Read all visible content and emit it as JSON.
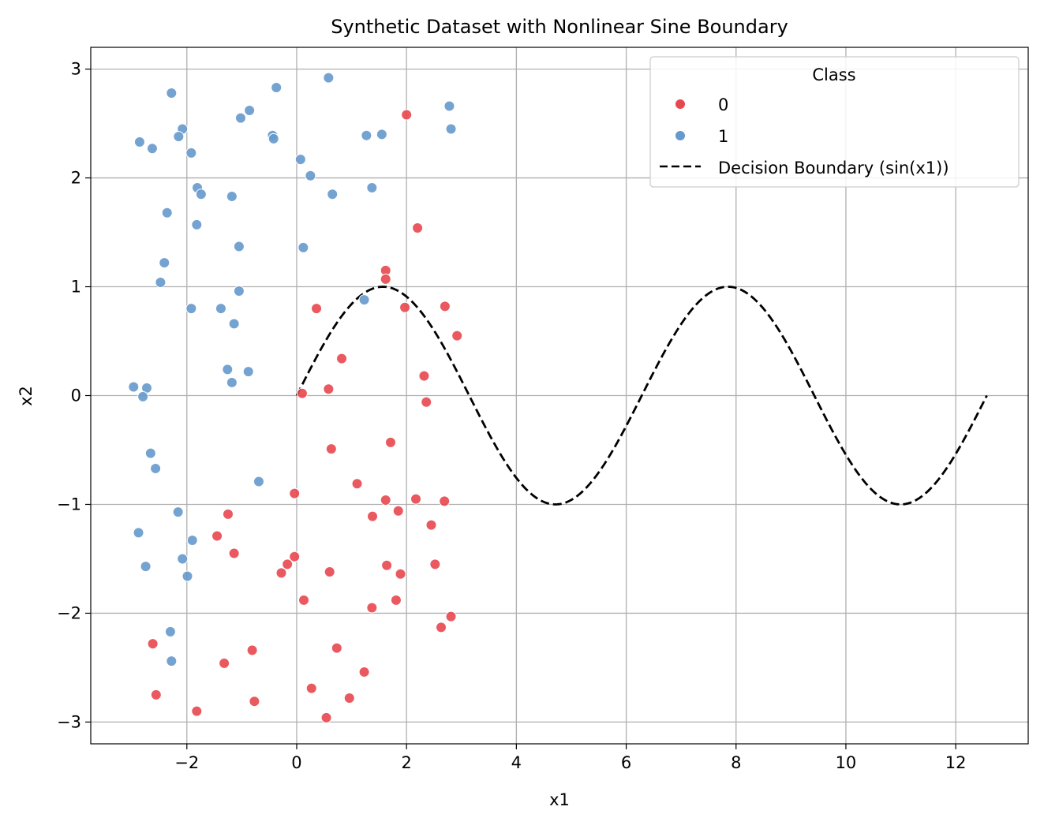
{
  "chart_data": {
    "type": "scatter",
    "title": "Synthetic Dataset with Nonlinear Sine Boundary",
    "xlabel": "x1",
    "ylabel": "x2",
    "xlim": [
      -3.75,
      13.32
    ],
    "ylim": [
      -3.2,
      3.2
    ],
    "xticks": [
      -2,
      0,
      2,
      4,
      6,
      8,
      10,
      12
    ],
    "yticks": [
      -3,
      -2,
      -1,
      0,
      1,
      2,
      3
    ],
    "xtick_labels": [
      "−2",
      "0",
      "2",
      "4",
      "6",
      "8",
      "10",
      "12"
    ],
    "ytick_labels": [
      "−3",
      "−2",
      "−1",
      "0",
      "1",
      "2",
      "3"
    ],
    "grid": true,
    "legend": {
      "title": "Class",
      "placement": "top-right",
      "entries": [
        "0",
        "1",
        "Decision Boundary (sin(x1))"
      ]
    },
    "series": [
      {
        "name": "0",
        "color": "#e8474e",
        "points": [
          [
            2.0,
            2.58
          ],
          [
            2.2,
            1.54
          ],
          [
            1.62,
            1.15
          ],
          [
            1.62,
            1.07
          ],
          [
            0.36,
            0.8
          ],
          [
            1.97,
            0.81
          ],
          [
            2.7,
            0.82
          ],
          [
            2.92,
            0.55
          ],
          [
            0.82,
            0.34
          ],
          [
            2.32,
            0.18
          ],
          [
            0.1,
            0.02
          ],
          [
            0.58,
            0.06
          ],
          [
            2.36,
            -0.06
          ],
          [
            1.71,
            -0.43
          ],
          [
            0.63,
            -0.49
          ],
          [
            1.1,
            -0.81
          ],
          [
            -0.04,
            -0.9
          ],
          [
            1.62,
            -0.96
          ],
          [
            2.17,
            -0.95
          ],
          [
            2.69,
            -0.97
          ],
          [
            1.38,
            -1.11
          ],
          [
            1.85,
            -1.06
          ],
          [
            -1.25,
            -1.09
          ],
          [
            2.45,
            -1.19
          ],
          [
            -1.45,
            -1.29
          ],
          [
            -1.14,
            -1.45
          ],
          [
            -0.04,
            -1.48
          ],
          [
            -0.17,
            -1.55
          ],
          [
            1.64,
            -1.56
          ],
          [
            2.52,
            -1.55
          ],
          [
            -0.28,
            -1.63
          ],
          [
            0.6,
            -1.62
          ],
          [
            1.89,
            -1.64
          ],
          [
            0.13,
            -1.88
          ],
          [
            1.81,
            -1.88
          ],
          [
            1.37,
            -1.95
          ],
          [
            2.81,
            -2.03
          ],
          [
            2.63,
            -2.13
          ],
          [
            -2.62,
            -2.28
          ],
          [
            0.73,
            -2.32
          ],
          [
            -0.81,
            -2.34
          ],
          [
            -1.32,
            -2.46
          ],
          [
            1.23,
            -2.54
          ],
          [
            0.27,
            -2.69
          ],
          [
            -2.56,
            -2.75
          ],
          [
            0.96,
            -2.78
          ],
          [
            -0.77,
            -2.81
          ],
          [
            -1.82,
            -2.9
          ],
          [
            0.54,
            -2.96
          ]
        ]
      },
      {
        "name": "1",
        "color": "#6699cc",
        "points": [
          [
            0.58,
            2.92
          ],
          [
            -0.37,
            2.83
          ],
          [
            -2.28,
            2.78
          ],
          [
            2.78,
            2.66
          ],
          [
            -0.86,
            2.62
          ],
          [
            -1.02,
            2.55
          ],
          [
            2.81,
            2.45
          ],
          [
            -2.08,
            2.45
          ],
          [
            -0.44,
            2.39
          ],
          [
            -0.42,
            2.36
          ],
          [
            1.27,
            2.39
          ],
          [
            1.55,
            2.4
          ],
          [
            -2.15,
            2.38
          ],
          [
            -2.86,
            2.33
          ],
          [
            -2.63,
            2.27
          ],
          [
            -1.92,
            2.23
          ],
          [
            0.07,
            2.17
          ],
          [
            0.25,
            2.02
          ],
          [
            -1.81,
            1.91
          ],
          [
            1.37,
            1.91
          ],
          [
            -1.74,
            1.85
          ],
          [
            0.65,
            1.85
          ],
          [
            -1.18,
            1.83
          ],
          [
            -2.36,
            1.68
          ],
          [
            -1.82,
            1.57
          ],
          [
            -1.05,
            1.37
          ],
          [
            0.12,
            1.36
          ],
          [
            -2.41,
            1.22
          ],
          [
            -2.48,
            1.04
          ],
          [
            -1.05,
            0.96
          ],
          [
            1.23,
            0.88
          ],
          [
            -1.92,
            0.8
          ],
          [
            -1.38,
            0.8
          ],
          [
            -1.14,
            0.66
          ],
          [
            -1.26,
            0.24
          ],
          [
            -0.88,
            0.22
          ],
          [
            -1.18,
            0.12
          ],
          [
            -2.97,
            0.08
          ],
          [
            -2.73,
            0.07
          ],
          [
            -2.8,
            -0.01
          ],
          [
            -2.66,
            -0.53
          ],
          [
            -2.57,
            -0.67
          ],
          [
            -0.69,
            -0.79
          ],
          [
            -2.16,
            -1.07
          ],
          [
            -2.88,
            -1.26
          ],
          [
            -1.9,
            -1.33
          ],
          [
            -2.08,
            -1.5
          ],
          [
            -2.75,
            -1.57
          ],
          [
            -1.99,
            -1.66
          ],
          [
            -2.3,
            -2.17
          ],
          [
            -2.28,
            -2.44
          ]
        ]
      }
    ],
    "line": {
      "name": "Decision Boundary (sin(x1))",
      "function": "sin(x1)",
      "x_range": [
        0,
        12.566
      ],
      "color": "#000000",
      "style": "dashed"
    }
  }
}
